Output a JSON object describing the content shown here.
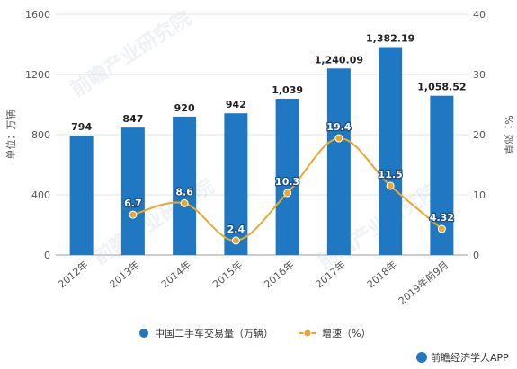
{
  "chart_data": {
    "type": "bar",
    "categories": [
      "2012年",
      "2013年",
      "2014年",
      "2015年",
      "2016年",
      "2017年",
      "2018年",
      "2019年前9月"
    ],
    "series": [
      {
        "name": "中国二手车交易量（万辆）",
        "type": "bar",
        "axis": "left",
        "values": [
          794,
          847,
          920,
          942,
          1039,
          1240.09,
          1382.19,
          1058.52
        ],
        "labels": [
          "794",
          "847",
          "920",
          "942",
          "1,039",
          "1,240.09",
          "1,382.19",
          "1,058.52"
        ],
        "color": "#1f78c1"
      },
      {
        "name": "增速（%）",
        "type": "line",
        "axis": "right",
        "values": [
          null,
          6.7,
          8.6,
          2.4,
          10.3,
          19.4,
          11.5,
          4.32
        ],
        "labels": [
          "",
          "6.7",
          "8.6",
          "2.4",
          "10.3",
          "19.4",
          "11.5",
          "4.32"
        ],
        "color": "#e8a82e"
      }
    ],
    "ylabel_left": "单位：万辆",
    "ylabel_right": "%：郊草",
    "ylim_left": [
      0,
      1600
    ],
    "ylim_right": [
      0,
      40
    ],
    "yticks_left": [
      "0",
      "400",
      "800",
      "1200",
      "1600"
    ],
    "yticks_right": [
      "0",
      "10",
      "20",
      "30",
      "40"
    ],
    "grid": true,
    "legend_position": "bottom",
    "watermark": "前瞻产业研究院",
    "source_logo_text": "前瞻经济学人APP"
  }
}
